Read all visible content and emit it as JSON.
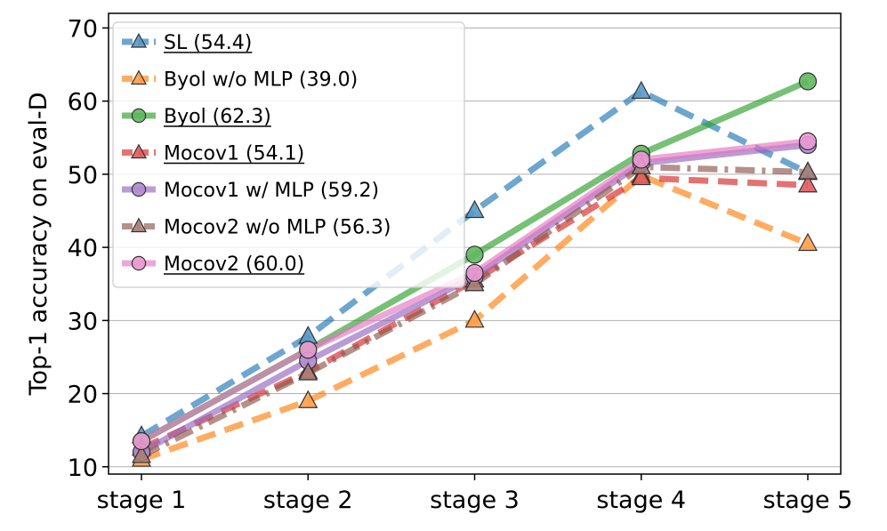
{
  "chart_data": {
    "type": "line",
    "categories": [
      "stage 1",
      "stage 2",
      "stage 3",
      "stage 4",
      "stage 5"
    ],
    "ylabel": "Top-1 accuracy on eval-D",
    "xlabel": "",
    "ylim": [
      9,
      72
    ],
    "yticks": [
      10,
      20,
      30,
      40,
      50,
      60,
      70
    ],
    "grid": "horizontal",
    "legend_position": "top-left",
    "series": [
      {
        "name": "SL (54.4)",
        "color": "#1f77b4",
        "linestyle": "dashed",
        "marker": "triangle",
        "underline": true,
        "values": [
          14.2,
          27.8,
          45.0,
          61.3,
          50.2
        ]
      },
      {
        "name": "Byol w/o MLP (39.0)",
        "color": "#ff7f0e",
        "linestyle": "dashed",
        "marker": "triangle",
        "underline": false,
        "values": [
          11.0,
          19.0,
          30.0,
          49.8,
          40.5
        ]
      },
      {
        "name": "Byol (62.3)",
        "color": "#2ca02c",
        "linestyle": "solid",
        "marker": "circle",
        "underline": true,
        "values": [
          13.5,
          26.0,
          39.0,
          52.8,
          62.7
        ]
      },
      {
        "name": "Mocov1 (54.1)",
        "color": "#d62728",
        "linestyle": "dashed",
        "marker": "triangle",
        "underline": true,
        "values": [
          12.5,
          23.0,
          35.5,
          49.5,
          48.5
        ]
      },
      {
        "name": "Mocov1 w/ MLP (59.2)",
        "color": "#9467bd",
        "linestyle": "solid",
        "marker": "circle",
        "underline": false,
        "values": [
          12.0,
          24.5,
          36.0,
          51.5,
          54.0
        ]
      },
      {
        "name": "Mocov2 w/o MLP (56.3)",
        "color": "#8c564b",
        "linestyle": "dashdot",
        "marker": "triangle",
        "underline": false,
        "values": [
          11.5,
          22.8,
          35.0,
          51.0,
          50.3
        ]
      },
      {
        "name": "Mocov2 (60.0)",
        "color": "#e377c2",
        "linestyle": "solid",
        "marker": "circle",
        "underline": true,
        "values": [
          13.5,
          26.0,
          36.5,
          52.0,
          54.5
        ]
      }
    ]
  }
}
